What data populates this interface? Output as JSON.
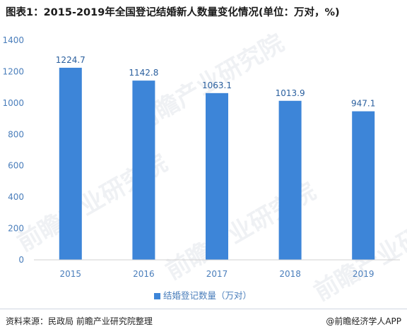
{
  "title": "图表1：2015-2019年全国登记结婚新人数量变化情况(单位：万对，%)",
  "source": "资料来源：民政局 前瞻产业研究院整理",
  "brand": "@前瞻经济学人APP",
  "watermark": "前瞻产业研究院",
  "colors": {
    "bar": "#3d85d8",
    "axis_text": "#4a7ebb",
    "grid": "#e6e6e6"
  },
  "chart_data": {
    "type": "bar",
    "categories": [
      "2015",
      "2016",
      "2017",
      "2018",
      "2019"
    ],
    "series": [
      {
        "name": "结婚登记数量（万对）",
        "values": [
          1224.7,
          1142.8,
          1063.1,
          1013.9,
          947.1
        ]
      }
    ],
    "value_labels": [
      "1224.7",
      "1142.8",
      "1063.1",
      "1013.9",
      "947.1"
    ],
    "ylim": [
      0,
      1400
    ],
    "yticks": [
      0,
      200,
      400,
      600,
      800,
      1000,
      1200,
      1400
    ],
    "legend_position": "bottom",
    "grid": false
  }
}
